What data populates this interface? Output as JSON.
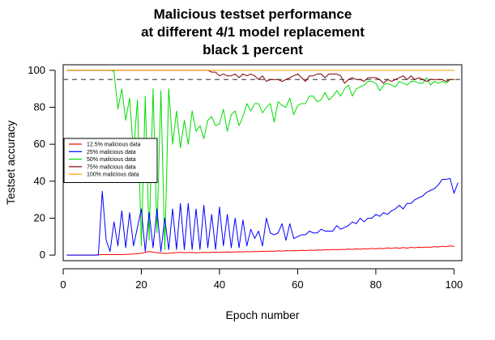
{
  "chart_data": {
    "type": "line",
    "title_lines": [
      "Malicious testset performance",
      "at different 4/1 model replacement",
      "black 1 percent"
    ],
    "xlabel": "Epoch number",
    "ylabel": "Testset accuracy",
    "xlim": [
      0,
      102
    ],
    "ylim": [
      -3,
      103
    ],
    "x_ticks": [
      0,
      20,
      40,
      60,
      80,
      100
    ],
    "y_ticks": [
      0,
      20,
      40,
      60,
      80,
      100
    ],
    "grid": false,
    "legend_position": "left",
    "reference_line": {
      "y": 95,
      "style": "dashed",
      "color": "#555555"
    },
    "series": [
      {
        "name": "12.5% malicious data",
        "color": "#ff0000",
        "y": [
          0,
          0,
          0,
          0,
          0,
          0,
          0,
          0,
          0.2,
          0.3,
          0.3,
          0.3,
          0.3,
          0.3,
          0.3,
          0.4,
          0.5,
          0.6,
          0.8,
          1.0,
          1.5,
          2.0,
          1.6,
          1.3,
          1.1,
          0.9,
          1.0,
          1.2,
          1.4,
          1.5,
          1.3,
          1.4,
          1.5,
          1.2,
          1.4,
          1.5,
          1.4,
          1.5,
          1.6,
          1.5,
          1.6,
          1.7,
          1.6,
          1.7,
          1.8,
          1.7,
          1.9,
          1.8,
          2.0,
          1.9,
          2.1,
          2.0,
          2.2,
          2.1,
          2.3,
          2.2,
          2.4,
          2.3,
          2.5,
          2.4,
          2.6,
          2.5,
          2.7,
          2.6,
          2.8,
          2.7,
          2.9,
          2.8,
          3.0,
          2.9,
          3.1,
          3.0,
          3.3,
          3.1,
          3.4,
          3.2,
          3.5,
          3.3,
          3.6,
          3.4,
          3.7,
          3.5,
          3.9,
          3.6,
          4.0,
          3.7,
          4.1,
          3.8,
          4.2,
          4.0,
          4.3,
          4.1,
          4.4,
          4.2,
          4.6,
          4.4,
          4.8,
          4.6,
          5.0,
          4.7
        ]
      },
      {
        "name": "25% malicious data",
        "color": "#0000ff",
        "y": [
          0,
          0,
          0,
          0,
          0,
          0,
          0,
          0,
          0,
          34.5,
          8,
          2,
          18,
          5,
          24,
          4,
          23,
          5,
          15,
          25,
          2,
          23,
          4,
          25,
          2,
          20,
          3,
          25,
          3,
          28,
          3,
          28,
          3,
          25,
          3,
          27,
          4,
          22,
          3,
          26,
          5,
          22,
          4,
          20,
          4,
          19,
          5,
          14,
          9,
          13,
          5,
          20,
          12,
          11,
          12,
          17,
          8,
          17,
          9,
          10,
          11,
          11,
          13,
          12,
          12,
          14,
          13,
          13,
          13,
          16,
          14,
          15,
          16,
          18,
          17,
          20,
          18,
          20,
          20,
          22,
          21,
          23,
          22,
          24,
          25,
          27,
          25,
          28,
          28,
          30,
          31,
          32,
          34,
          35,
          36,
          38,
          41,
          41,
          41.5,
          33.5,
          39
        ]
      },
      {
        "name": "50% malicious data",
        "color": "#00dd00",
        "y": [
          100,
          100,
          100,
          100,
          100,
          100,
          100,
          100,
          100,
          100,
          100,
          100,
          99.5,
          79,
          90,
          73,
          85,
          55,
          84,
          5,
          86,
          8,
          90,
          12,
          89,
          3,
          90,
          60,
          78,
          58,
          73,
          60,
          78,
          67,
          70,
          63,
          73,
          75,
          70,
          71,
          79,
          67,
          76,
          78,
          70,
          75,
          82,
          78,
          82,
          82,
          77,
          80,
          82,
          72,
          83,
          81,
          80,
          85,
          76,
          81,
          82,
          82,
          86,
          86,
          83,
          84,
          88,
          84,
          86,
          89,
          86,
          90,
          92,
          86,
          90,
          91,
          92,
          94,
          94,
          93,
          89,
          92,
          93,
          92,
          91,
          94,
          93,
          92,
          94,
          94,
          93,
          93,
          96,
          92,
          94,
          93,
          94,
          93,
          95,
          95
        ]
      },
      {
        "name": "75% malicious data",
        "color": "#800000",
        "y": [
          100,
          100,
          100,
          100,
          100,
          100,
          100,
          100,
          100,
          100,
          100,
          100,
          100,
          100,
          100,
          100,
          100,
          100,
          100,
          100,
          100,
          100,
          100,
          100,
          100,
          100,
          100,
          100,
          100,
          100,
          100,
          100,
          100,
          100,
          100,
          100,
          100,
          99,
          99,
          97,
          98,
          97,
          97,
          98,
          96,
          98,
          97,
          98,
          97,
          95,
          97,
          94,
          95,
          95,
          95,
          94,
          95,
          96,
          97,
          98,
          96,
          94,
          97,
          97,
          98,
          98,
          96,
          98,
          98,
          98,
          97,
          93,
          95,
          96,
          95,
          95,
          94,
          96,
          96,
          96,
          95,
          93,
          95,
          94,
          95,
          96,
          97,
          95,
          97,
          95,
          96,
          95,
          94,
          95,
          95,
          95,
          95,
          94,
          95,
          95
        ]
      },
      {
        "name": "100% malicious data",
        "color": "#ff9900",
        "y": [
          100,
          100,
          100,
          100,
          100,
          100,
          100,
          100,
          100,
          100,
          100,
          100,
          100,
          100,
          100,
          100,
          100,
          100,
          100,
          100,
          100,
          100,
          100,
          100,
          100,
          100,
          100,
          100,
          100,
          100,
          100,
          100,
          100,
          100,
          100,
          100,
          100,
          100,
          100,
          100,
          100,
          100,
          100,
          100,
          100,
          100,
          100,
          100,
          100,
          100,
          100,
          100,
          100,
          100,
          100,
          100,
          100,
          100,
          100,
          100,
          100,
          100,
          100,
          100,
          100,
          100,
          100,
          100,
          100,
          100,
          100,
          100,
          100,
          100,
          100,
          100,
          100,
          100,
          100,
          100,
          100,
          100,
          100,
          100,
          100,
          100,
          100,
          100,
          100,
          100,
          100,
          100,
          100,
          100,
          100,
          100,
          100,
          100,
          100,
          100
        ]
      }
    ]
  }
}
